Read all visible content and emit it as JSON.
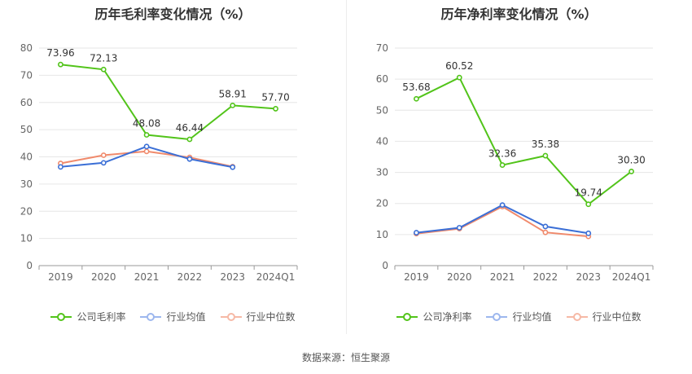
{
  "colors": {
    "company": "#52c41a",
    "avg": "#3b6fd6",
    "median": "#f08a6c",
    "grid": "#e6e6e6",
    "axis": "#999999"
  },
  "source": "数据来源：恒生聚源",
  "charts": [
    {
      "title": "历年毛利率变化情况（%）",
      "legend": [
        "公司毛利率",
        "行业均值",
        "行业中位数"
      ]
    },
    {
      "title": "历年净利率变化情况（%）",
      "legend": [
        "公司净利率",
        "行业均值",
        "行业中位数"
      ]
    }
  ],
  "chart_data": [
    {
      "type": "line",
      "title": "历年毛利率变化情况（%）",
      "categories": [
        "2019",
        "2020",
        "2021",
        "2022",
        "2023",
        "2024Q1"
      ],
      "ylim": [
        0,
        80
      ],
      "yticks": [
        0,
        10,
        20,
        30,
        40,
        50,
        60,
        70,
        80
      ],
      "grid": true,
      "legend_position": "bottom",
      "series": [
        {
          "name": "公司毛利率",
          "values": [
            73.96,
            72.13,
            48.08,
            46.44,
            58.91,
            57.7
          ],
          "labels": [
            "73.96",
            "72.13",
            "48.08",
            "46.44",
            "58.91",
            "57.70"
          ]
        },
        {
          "name": "行业均值",
          "values": [
            36.3,
            37.8,
            43.8,
            39.2,
            36.2,
            null
          ]
        },
        {
          "name": "行业中位数",
          "values": [
            37.6,
            40.6,
            42.0,
            39.8,
            36.4,
            null
          ]
        }
      ]
    },
    {
      "type": "line",
      "title": "历年净利率变化情况（%）",
      "categories": [
        "2019",
        "2020",
        "2021",
        "2022",
        "2023",
        "2024Q1"
      ],
      "ylim": [
        0,
        70
      ],
      "yticks": [
        0,
        10,
        20,
        30,
        40,
        50,
        60,
        70
      ],
      "grid": true,
      "legend_position": "bottom",
      "series": [
        {
          "name": "公司净利率",
          "values": [
            53.68,
            60.52,
            32.36,
            35.38,
            19.74,
            30.3
          ],
          "labels": [
            "53.68",
            "60.52",
            "32.36",
            "35.38",
            "19.74",
            "30.30"
          ]
        },
        {
          "name": "行业均值",
          "values": [
            10.6,
            12.2,
            19.5,
            12.6,
            10.4,
            null
          ]
        },
        {
          "name": "行业中位数",
          "values": [
            10.3,
            11.9,
            19.0,
            10.7,
            9.4,
            null
          ]
        }
      ]
    }
  ]
}
